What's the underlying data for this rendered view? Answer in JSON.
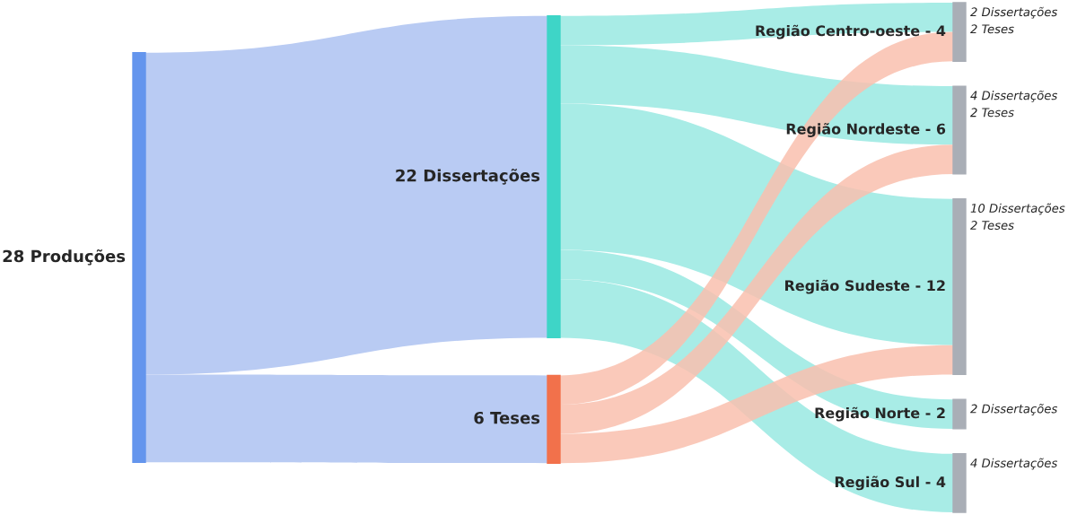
{
  "chart_data": {
    "type": "other",
    "categories": [
      "Região Centro-oeste - 4",
      "Região Nordeste - 6",
      "Região Sudeste - 12",
      "Região Norte - 2",
      "Região Sul - 4"
    ],
    "series": [
      {
        "name": "22 Dissertações",
        "values": [
          2,
          4,
          10,
          2,
          4
        ],
        "value_labels": [
          "2 Dissertações",
          "4 Dissertações",
          "10 Dissertações",
          "2 Dissertações",
          "4 Dissertações"
        ]
      },
      {
        "name": "6 Teses",
        "values": [
          2,
          2,
          2,
          null,
          null
        ],
        "value_labels": [
          "2 Teses",
          "2 Teses",
          "2 Teses",
          null,
          null
        ]
      }
    ],
    "annotations": [
      "28 Produções"
    ]
  }
}
